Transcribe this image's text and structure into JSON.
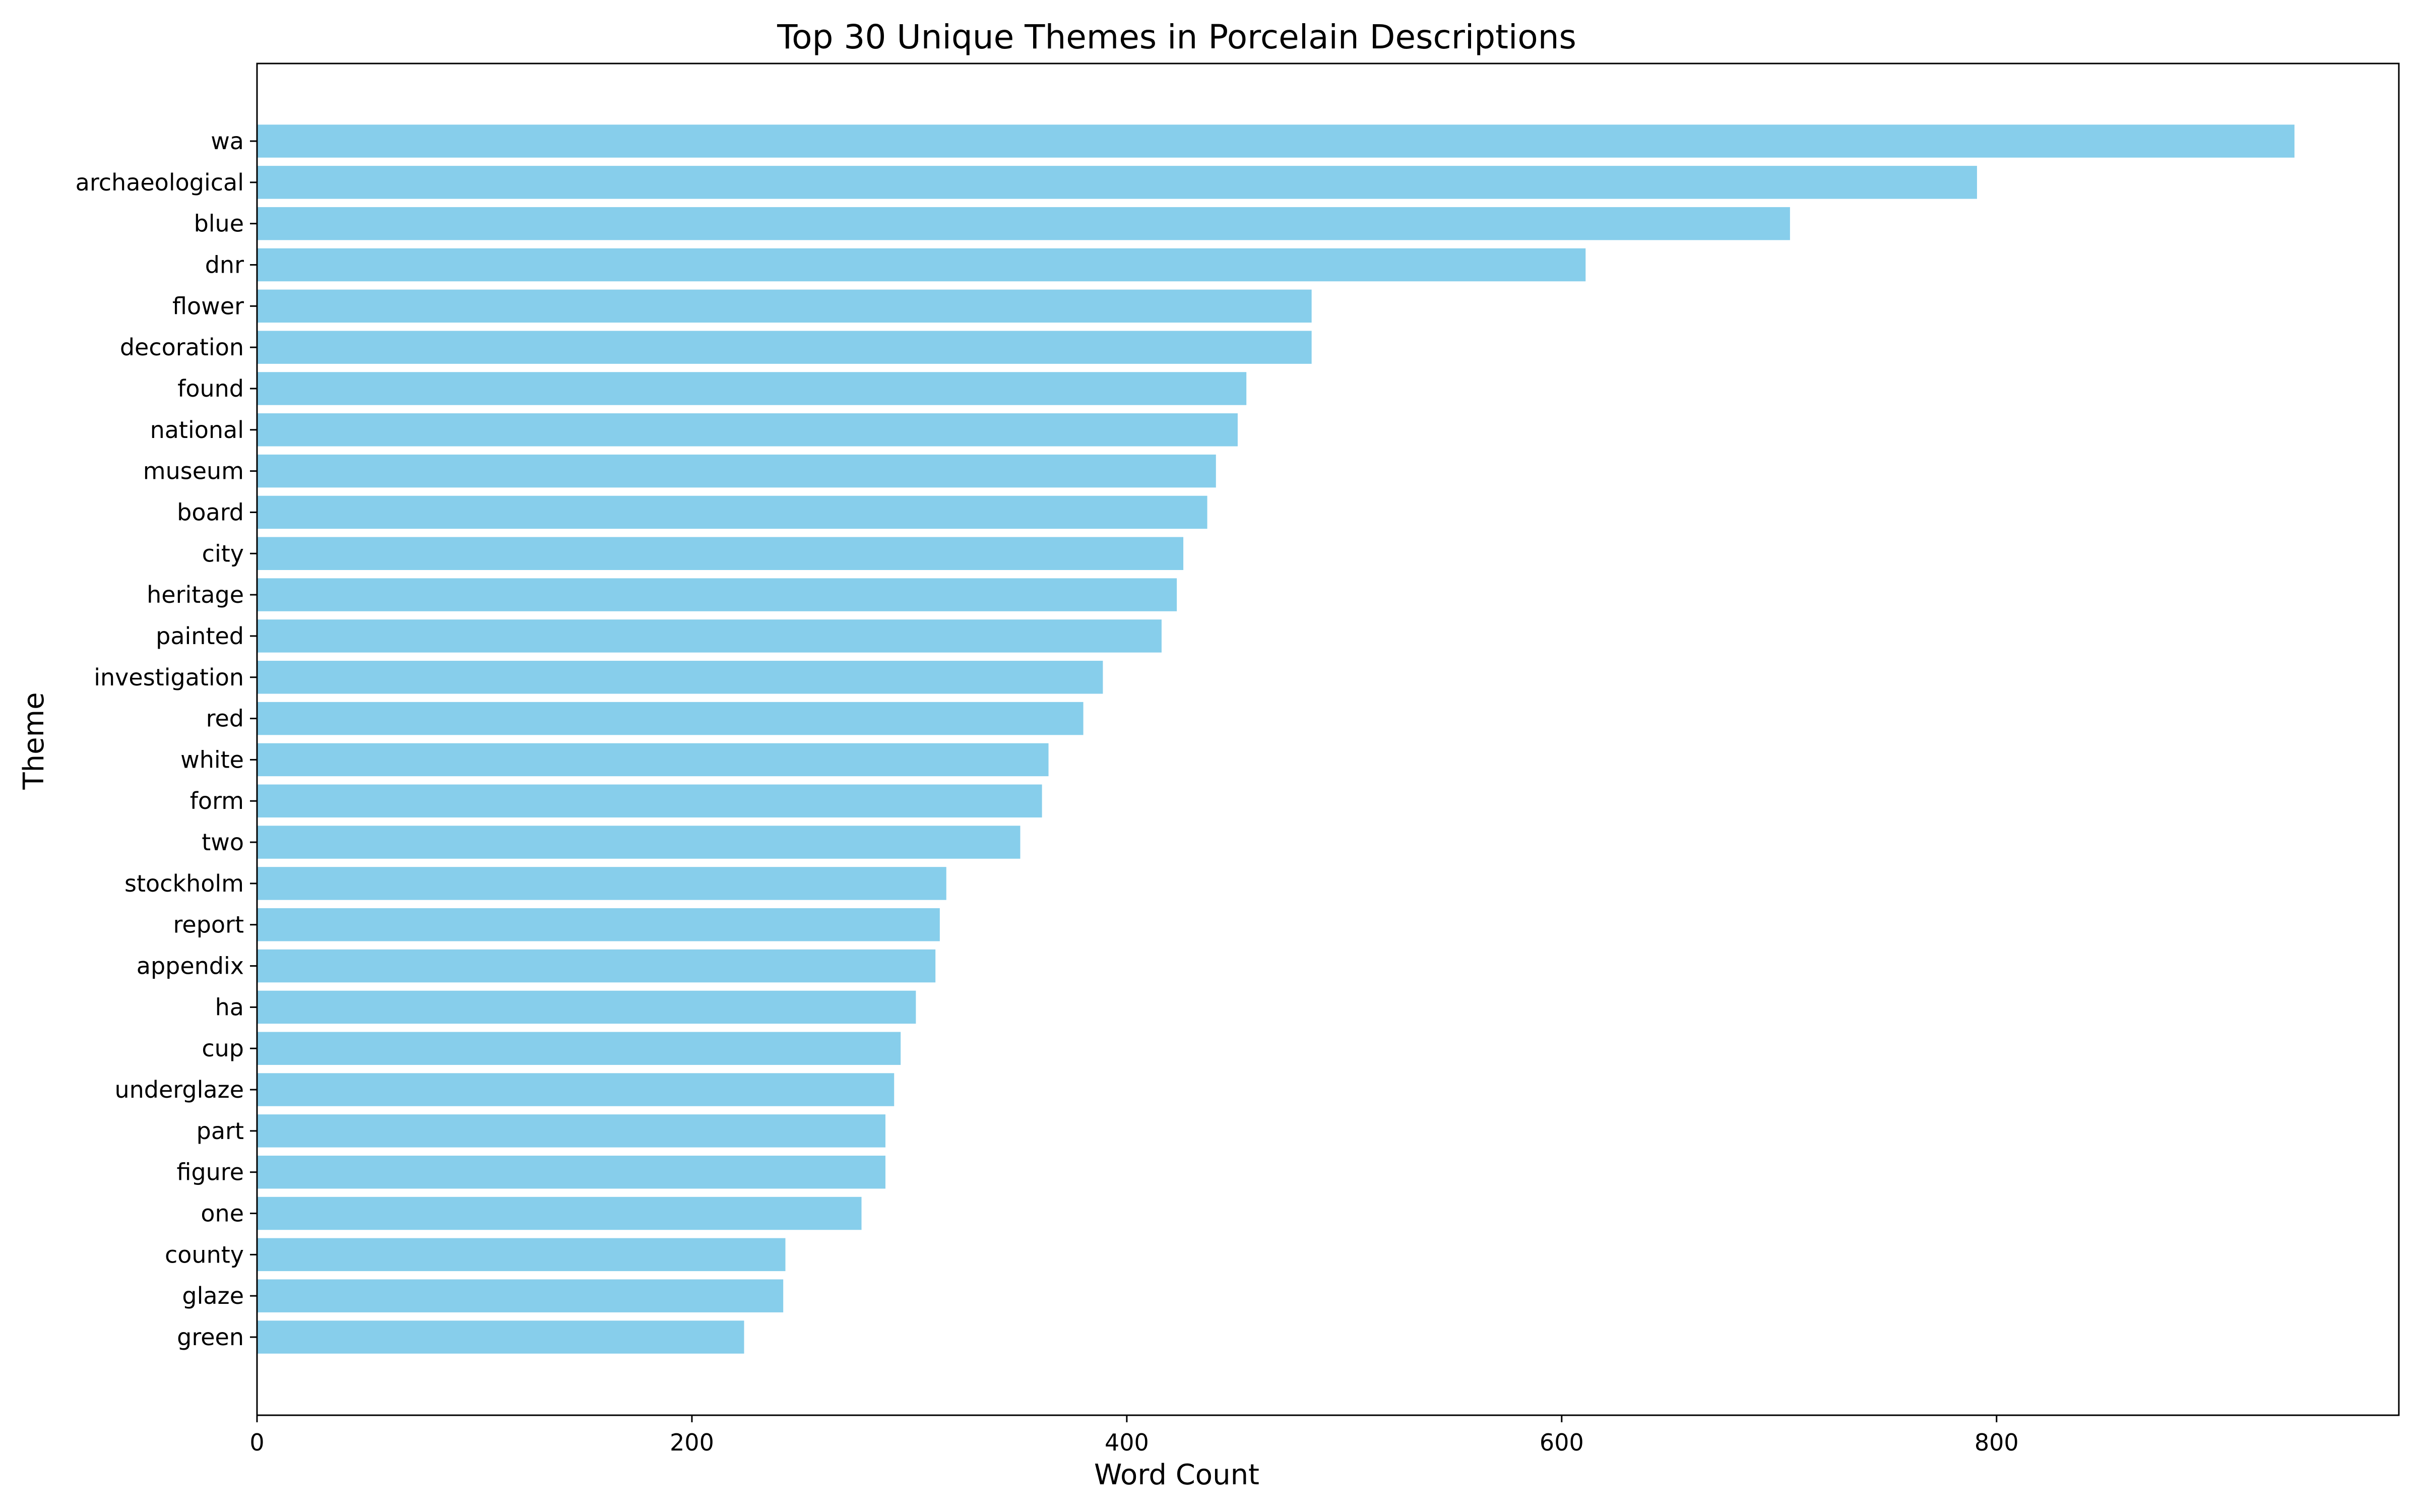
{
  "chart_data": {
    "type": "bar",
    "orientation": "horizontal",
    "title": "Top 30 Unique Themes in Porcelain Descriptions",
    "xlabel": "Word Count",
    "ylabel": "Theme",
    "categories": [
      "wa",
      "archaeological",
      "blue",
      "dnr",
      "flower",
      "decoration",
      "found",
      "national",
      "museum",
      "board",
      "city",
      "heritage",
      "painted",
      "investigation",
      "red",
      "white",
      "form",
      "two",
      "stockholm",
      "report",
      "appendix",
      "ha",
      "cup",
      "underglaze",
      "part",
      "figure",
      "one",
      "county",
      "glaze",
      "green"
    ],
    "values": [
      937,
      791,
      705,
      611,
      485,
      485,
      455,
      451,
      441,
      437,
      426,
      423,
      416,
      389,
      380,
      364,
      361,
      351,
      317,
      314,
      312,
      303,
      296,
      293,
      289,
      289,
      278,
      243,
      242,
      224
    ],
    "xlim": [
      0,
      985
    ],
    "xticks": [
      0,
      200,
      400,
      600,
      800
    ],
    "bar_color": "#87CEEB",
    "grid": false,
    "legend": "none"
  }
}
